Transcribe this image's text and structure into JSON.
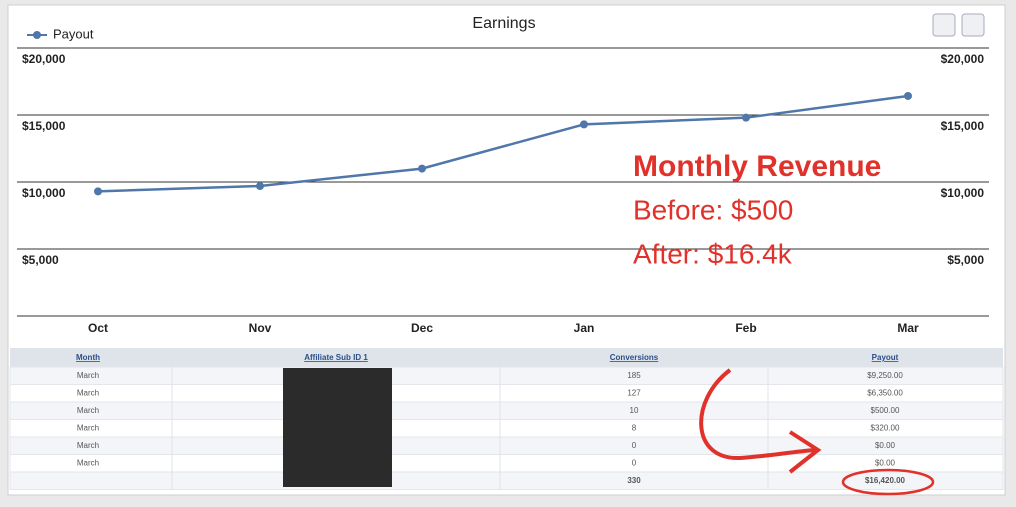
{
  "chart_data": {
    "type": "line",
    "title": "Earnings",
    "categories": [
      "Oct",
      "Nov",
      "Dec",
      "Jan",
      "Feb",
      "Mar"
    ],
    "series": [
      {
        "name": "Payout",
        "color": "#4f77aa",
        "values": [
          9300,
          9700,
          11000,
          14300,
          14800,
          16420
        ]
      }
    ],
    "ylim": [
      0,
      20000
    ],
    "yticks": [
      {
        "value": 5000,
        "label": "$5,000"
      },
      {
        "value": 10000,
        "label": "$10,000"
      },
      {
        "value": 15000,
        "label": "$15,000"
      },
      {
        "value": 20000,
        "label": "$20,000"
      }
    ],
    "grid": true,
    "legend": "top-left"
  },
  "annotation": {
    "heading": "Monthly Revenue",
    "before": "Before: $500",
    "after": "After: $16.4k"
  },
  "table": {
    "headers": [
      "Month",
      "Affiliate Sub ID 1",
      "Conversions",
      "Payout"
    ],
    "rows": [
      {
        "month": "March",
        "conversions": "185",
        "payout": "$9,250.00"
      },
      {
        "month": "March",
        "conversions": "127",
        "payout": "$6,350.00"
      },
      {
        "month": "March",
        "conversions": "10",
        "payout": "$500.00"
      },
      {
        "month": "March",
        "conversions": "8",
        "payout": "$320.00"
      },
      {
        "month": "March",
        "conversions": "0",
        "payout": "$0.00"
      },
      {
        "month": "March",
        "conversions": "0",
        "payout": "$0.00"
      }
    ],
    "total": {
      "conversions": "330",
      "payout": "$16,420.00"
    }
  }
}
